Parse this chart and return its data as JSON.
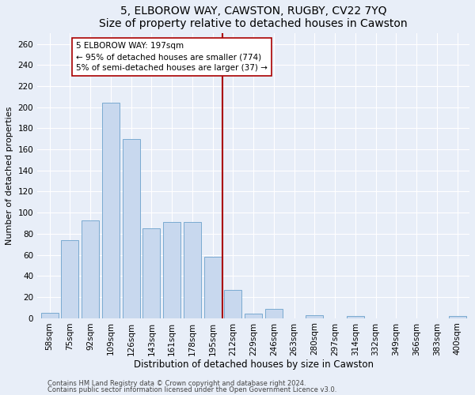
{
  "title1": "5, ELBOROW WAY, CAWSTON, RUGBY, CV22 7YQ",
  "title2": "Size of property relative to detached houses in Cawston",
  "xlabel": "Distribution of detached houses by size in Cawston",
  "ylabel": "Number of detached properties",
  "categories": [
    "58sqm",
    "75sqm",
    "92sqm",
    "109sqm",
    "126sqm",
    "143sqm",
    "161sqm",
    "178sqm",
    "195sqm",
    "212sqm",
    "229sqm",
    "246sqm",
    "263sqm",
    "280sqm",
    "297sqm",
    "314sqm",
    "332sqm",
    "349sqm",
    "366sqm",
    "383sqm",
    "400sqm"
  ],
  "values": [
    5,
    74,
    93,
    204,
    170,
    85,
    91,
    91,
    58,
    27,
    4,
    9,
    0,
    3,
    0,
    2,
    0,
    0,
    0,
    0,
    2
  ],
  "bar_color": "#c8d8ee",
  "bar_edge_color": "#7aaad0",
  "vline_color": "#aa0000",
  "annotation_text": "5 ELBOROW WAY: 197sqm\n← 95% of detached houses are smaller (774)\n5% of semi-detached houses are larger (37) →",
  "annotation_box_color": "#ffffff",
  "annotation_box_edge": "#aa0000",
  "ylim": [
    0,
    270
  ],
  "yticks": [
    0,
    20,
    40,
    60,
    80,
    100,
    120,
    140,
    160,
    180,
    200,
    220,
    240,
    260
  ],
  "footer1": "Contains HM Land Registry data © Crown copyright and database right 2024.",
  "footer2": "Contains public sector information licensed under the Open Government Licence v3.0.",
  "bg_color": "#e8eef8",
  "plot_bg_color": "#e8eef8",
  "grid_color": "#ffffff",
  "title1_fontsize": 10,
  "title2_fontsize": 9,
  "xlabel_fontsize": 8.5,
  "ylabel_fontsize": 8,
  "tick_fontsize": 7.5,
  "ann_fontsize": 7.5,
  "footer_fontsize": 6
}
